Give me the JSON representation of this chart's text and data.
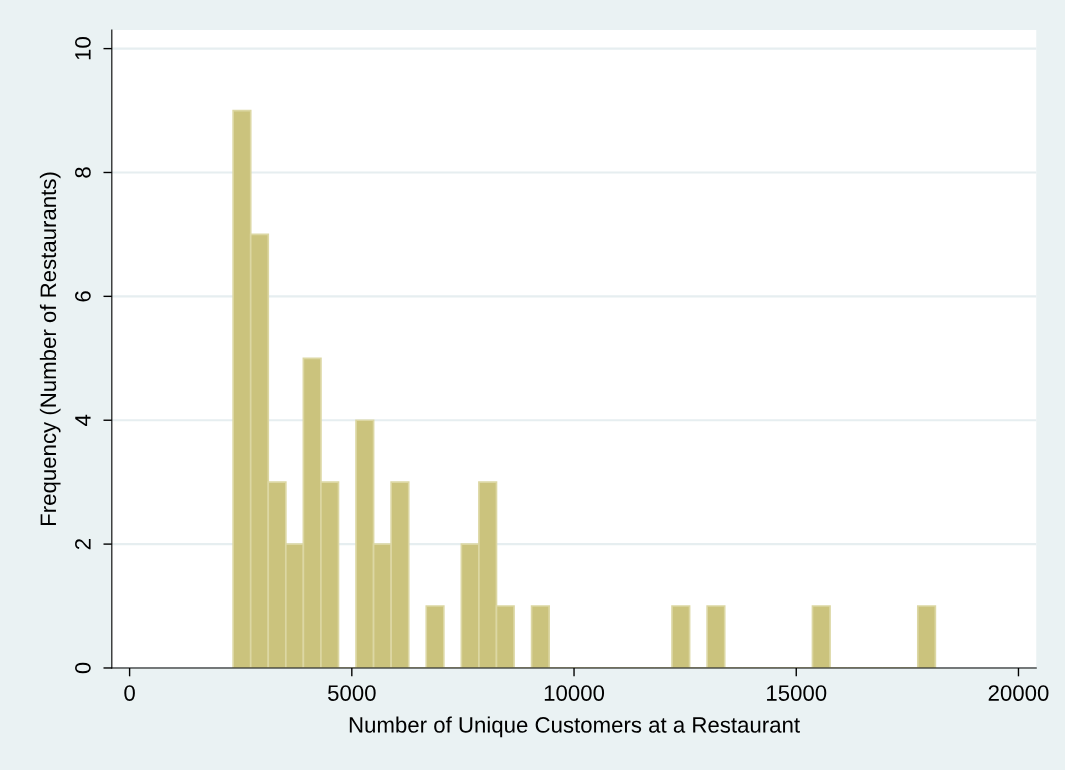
{
  "chart_data": {
    "type": "histogram",
    "xlabel": "Number of Unique Customers at a Restaurant",
    "ylabel": "Frequency (Number of Restaurants)",
    "bins": [
      2330,
      2725,
      3120,
      3515,
      3910,
      4305,
      4700,
      5095,
      5490,
      5885,
      6280,
      6675,
      7070,
      7465,
      7860,
      8255,
      8650,
      9045,
      9440,
      9835,
      10230,
      10625,
      11020,
      11415,
      11810,
      12205,
      12600,
      12995,
      13390,
      13785,
      14180,
      14575,
      14970,
      15365,
      15760,
      16155,
      16550,
      16945,
      17340,
      17735,
      18130
    ],
    "values": [
      9,
      7,
      3,
      2,
      5,
      3,
      0,
      4,
      2,
      3,
      0,
      1,
      0,
      2,
      3,
      1,
      0,
      1,
      0,
      0,
      0,
      0,
      0,
      0,
      0,
      1,
      0,
      1,
      0,
      0,
      0,
      0,
      0,
      1,
      0,
      0,
      0,
      0,
      0,
      1
    ],
    "color": "#cbc37d",
    "xlim": [
      -400,
      20400
    ],
    "ylim": [
      0,
      10.3
    ],
    "xticks": [
      0,
      5000,
      10000,
      15000,
      20000
    ],
    "yticks": [
      0,
      2,
      4,
      6,
      8,
      10
    ],
    "grid": "y"
  }
}
